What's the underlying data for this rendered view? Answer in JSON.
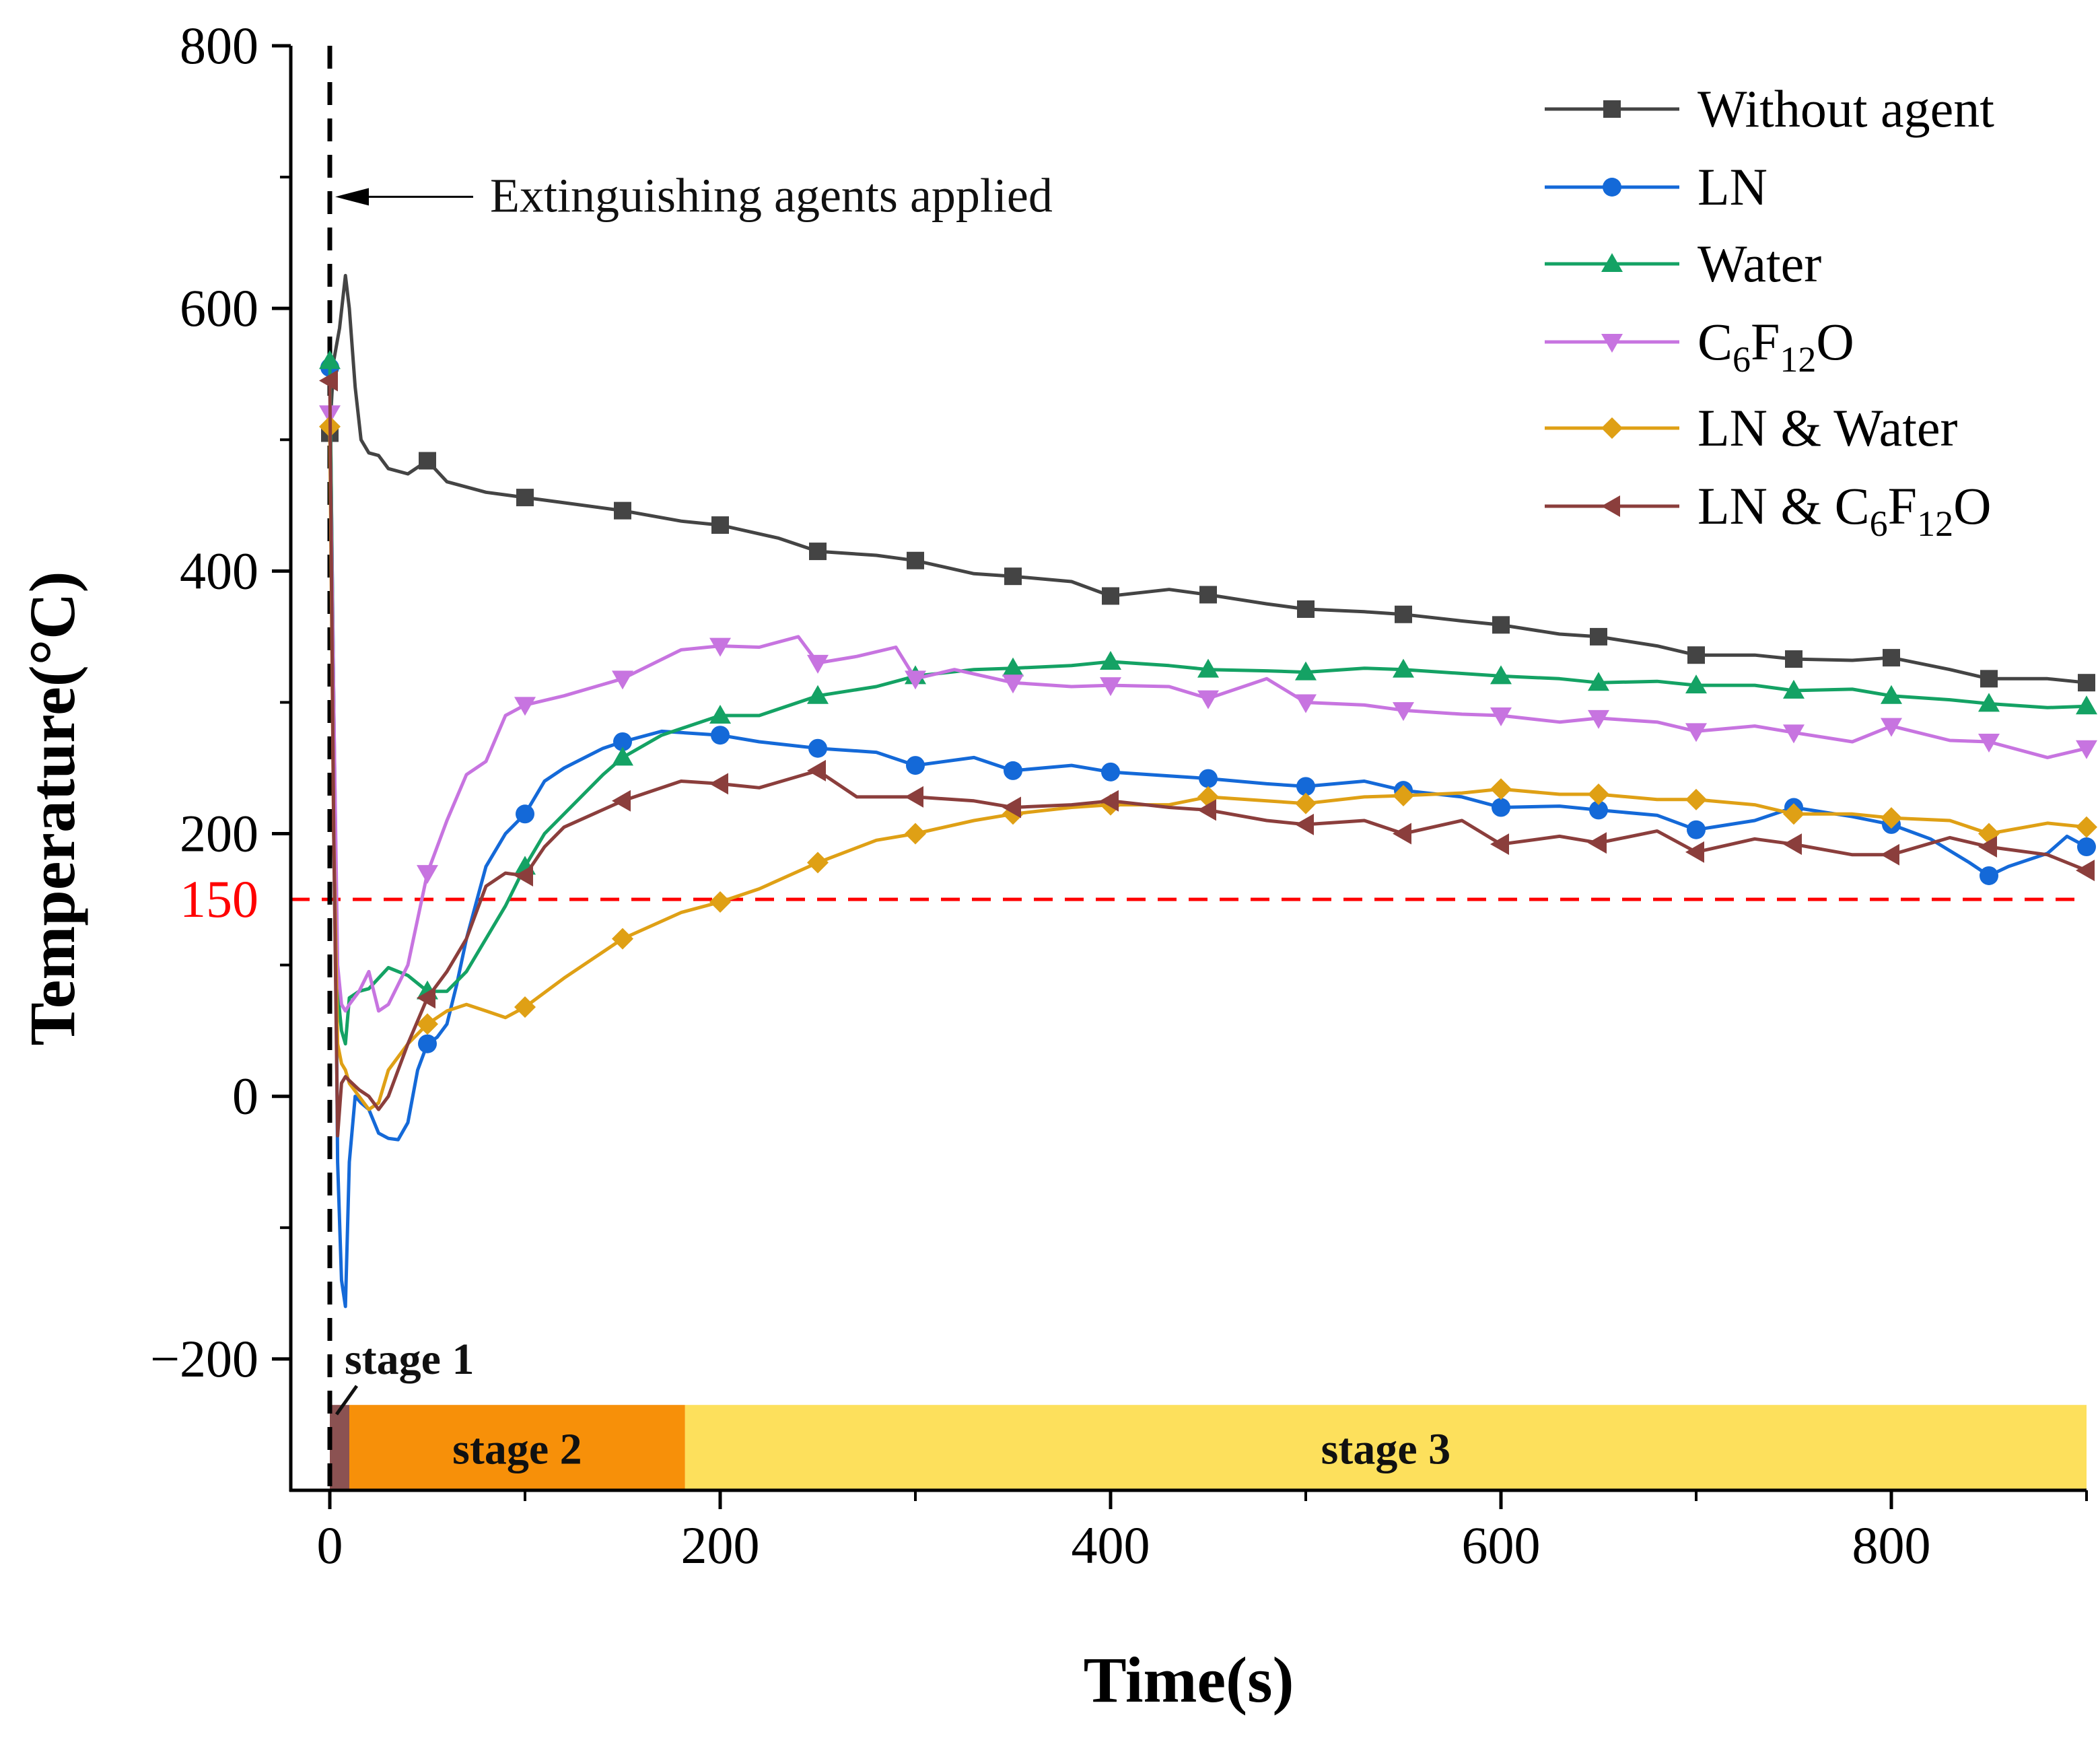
{
  "chart_data": {
    "type": "line",
    "xlabel": "Time(s)",
    "ylabel": "Temperature(°C)",
    "xlim": [
      -20,
      900
    ],
    "ylim": [
      -300,
      800
    ],
    "x_ticks": [
      0,
      200,
      400,
      600,
      800
    ],
    "y_ticks": [
      -200,
      0,
      200,
      400,
      600,
      800
    ],
    "x_tick_labels": [
      "0",
      "200",
      "400",
      "600",
      "800"
    ],
    "y_tick_labels": [
      "−200",
      "0",
      "200",
      "400",
      "600",
      "800"
    ],
    "grid": false,
    "legend_position": "top-right",
    "threshold": {
      "value": 150,
      "label": "150",
      "color": "#ff0000"
    },
    "agent_line": {
      "x": 0
    },
    "annotation": {
      "text": "Extinguishing agents applied",
      "x": 0,
      "y": 685
    },
    "stages": [
      {
        "label": "stage 1",
        "start": 0,
        "end": 10,
        "color": "#8b5252"
      },
      {
        "label": "stage 2",
        "start": 10,
        "end": 182,
        "color": "#f79009"
      },
      {
        "label": "stage 3",
        "start": 182,
        "end": 900,
        "color": "#fde05c"
      }
    ],
    "series": [
      {
        "name": "Without agent",
        "legend": [
          {
            "t": "Without agent",
            "sub": false
          }
        ],
        "color": "#444444",
        "marker": "square",
        "x": [
          0,
          2,
          5,
          8,
          10,
          13,
          16,
          20,
          25,
          30,
          40,
          50,
          60,
          80,
          100,
          120,
          150,
          180,
          200,
          230,
          250,
          280,
          300,
          330,
          350,
          380,
          400,
          430,
          450,
          480,
          500,
          530,
          550,
          580,
          600,
          630,
          650,
          680,
          700,
          730,
          750,
          780,
          800,
          830,
          850,
          880,
          900
        ],
        "y": [
          505,
          560,
          585,
          625,
          600,
          540,
          500,
          490,
          488,
          478,
          474,
          484,
          468,
          460,
          456,
          452,
          446,
          438,
          435,
          425,
          415,
          412,
          408,
          398,
          396,
          392,
          381,
          386,
          382,
          375,
          371,
          369,
          367,
          362,
          359,
          352,
          350,
          343,
          336,
          336,
          333,
          332,
          334,
          325,
          318,
          318,
          315
        ],
        "markers_x": [
          0,
          50,
          100,
          150,
          200,
          250,
          300,
          350,
          400,
          450,
          500,
          550,
          600,
          650,
          700,
          750,
          800,
          850,
          900
        ]
      },
      {
        "name": "LN",
        "legend": [
          {
            "t": "LN",
            "sub": false
          }
        ],
        "color": "#1469d8",
        "marker": "circle",
        "x": [
          0,
          2,
          4,
          6,
          8,
          10,
          13,
          16,
          20,
          25,
          30,
          35,
          40,
          45,
          50,
          55,
          60,
          65,
          70,
          80,
          90,
          100,
          110,
          120,
          140,
          150,
          170,
          200,
          220,
          250,
          280,
          300,
          330,
          350,
          380,
          400,
          430,
          450,
          480,
          500,
          530,
          550,
          580,
          600,
          630,
          650,
          680,
          700,
          730,
          750,
          780,
          800,
          820,
          840,
          850,
          860,
          880,
          890,
          900
        ],
        "y": [
          555,
          300,
          -50,
          -140,
          -160,
          -50,
          0,
          -5,
          -10,
          -28,
          -32,
          -33,
          -20,
          20,
          40,
          45,
          55,
          85,
          120,
          175,
          200,
          215,
          240,
          250,
          265,
          270,
          278,
          275,
          270,
          265,
          262,
          252,
          258,
          248,
          252,
          247,
          244,
          242,
          238,
          236,
          240,
          233,
          228,
          220,
          221,
          218,
          214,
          203,
          210,
          220,
          213,
          207,
          196,
          178,
          168,
          175,
          185,
          198,
          190
        ],
        "markers_x": [
          0,
          50,
          100,
          150,
          200,
          250,
          300,
          350,
          400,
          450,
          500,
          550,
          600,
          650,
          700,
          750,
          800,
          850,
          900
        ]
      },
      {
        "name": "Water",
        "legend": [
          {
            "t": "Water",
            "sub": false
          }
        ],
        "color": "#14a264",
        "marker": "triangle-up",
        "x": [
          0,
          2,
          4,
          6,
          8,
          10,
          15,
          20,
          30,
          40,
          50,
          60,
          70,
          80,
          90,
          100,
          110,
          120,
          140,
          150,
          170,
          200,
          220,
          250,
          280,
          300,
          330,
          350,
          380,
          400,
          430,
          450,
          480,
          500,
          530,
          550,
          580,
          600,
          630,
          650,
          680,
          700,
          730,
          750,
          780,
          800,
          830,
          850,
          880,
          900
        ],
        "y": [
          560,
          300,
          80,
          50,
          40,
          75,
          80,
          82,
          98,
          92,
          80,
          80,
          95,
          120,
          145,
          175,
          200,
          215,
          245,
          258,
          275,
          290,
          290,
          305,
          312,
          320,
          325,
          326,
          328,
          331,
          328,
          325,
          324,
          323,
          326,
          325,
          322,
          320,
          318,
          315,
          316,
          313,
          313,
          309,
          310,
          305,
          302,
          299,
          296,
          297
        ],
        "markers_x": [
          0,
          50,
          100,
          150,
          200,
          250,
          300,
          350,
          400,
          450,
          500,
          550,
          600,
          650,
          700,
          750,
          800,
          850,
          900
        ]
      },
      {
        "name": "C6F12O",
        "legend": [
          {
            "t": "C",
            "sub": false
          },
          {
            "t": "6",
            "sub": true
          },
          {
            "t": "F",
            "sub": false
          },
          {
            "t": "12",
            "sub": true
          },
          {
            "t": "O",
            "sub": false
          }
        ],
        "color": "#c774e0",
        "marker": "triangle-down",
        "x": [
          0,
          2,
          4,
          6,
          8,
          10,
          15,
          20,
          25,
          30,
          40,
          50,
          60,
          70,
          80,
          90,
          100,
          120,
          150,
          180,
          200,
          220,
          240,
          250,
          270,
          290,
          300,
          320,
          350,
          380,
          400,
          430,
          450,
          480,
          500,
          530,
          550,
          580,
          600,
          630,
          650,
          680,
          700,
          730,
          750,
          780,
          800,
          830,
          850,
          880,
          900
        ],
        "y": [
          520,
          300,
          100,
          70,
          65,
          70,
          80,
          95,
          65,
          70,
          100,
          170,
          210,
          245,
          255,
          290,
          298,
          305,
          318,
          340,
          343,
          342,
          350,
          330,
          335,
          342,
          318,
          325,
          315,
          312,
          313,
          312,
          303,
          318,
          300,
          298,
          294,
          291,
          290,
          285,
          288,
          285,
          278,
          282,
          277,
          270,
          282,
          271,
          270,
          258,
          265
        ],
        "markers_x": [
          0,
          50,
          100,
          150,
          200,
          250,
          300,
          350,
          400,
          450,
          500,
          550,
          600,
          650,
          700,
          750,
          800,
          850,
          900
        ]
      },
      {
        "name": "LN & Water",
        "legend": [
          {
            "t": "LN & Water",
            "sub": false
          }
        ],
        "color": "#dfa015",
        "marker": "diamond",
        "x": [
          0,
          2,
          4,
          6,
          8,
          10,
          15,
          20,
          25,
          30,
          40,
          50,
          60,
          70,
          80,
          90,
          100,
          120,
          150,
          180,
          200,
          220,
          250,
          280,
          300,
          330,
          350,
          380,
          400,
          430,
          450,
          480,
          500,
          530,
          550,
          580,
          600,
          630,
          650,
          680,
          700,
          730,
          750,
          780,
          800,
          830,
          850,
          880,
          900
        ],
        "y": [
          510,
          200,
          40,
          25,
          20,
          10,
          0,
          -10,
          -5,
          20,
          40,
          55,
          65,
          70,
          65,
          60,
          68,
          90,
          120,
          140,
          148,
          158,
          178,
          195,
          200,
          210,
          215,
          220,
          222,
          222,
          228,
          225,
          223,
          228,
          229,
          231,
          234,
          230,
          230,
          226,
          226,
          222,
          215,
          215,
          212,
          210,
          200,
          208,
          205
        ],
        "markers_x": [
          0,
          50,
          100,
          150,
          200,
          250,
          300,
          350,
          400,
          450,
          500,
          550,
          600,
          650,
          700,
          750,
          800,
          850,
          900
        ]
      },
      {
        "name": "LN & C6F12O",
        "legend": [
          {
            "t": "LN & C",
            "sub": false
          },
          {
            "t": "6",
            "sub": true
          },
          {
            "t": "F",
            "sub": false
          },
          {
            "t": "12",
            "sub": true
          },
          {
            "t": "O",
            "sub": false
          }
        ],
        "color": "#8b3e3c",
        "marker": "triangle-left",
        "x": [
          0,
          2,
          4,
          6,
          8,
          10,
          15,
          20,
          25,
          30,
          40,
          50,
          60,
          70,
          80,
          90,
          100,
          110,
          120,
          150,
          180,
          200,
          220,
          250,
          270,
          300,
          330,
          350,
          380,
          400,
          430,
          450,
          480,
          500,
          530,
          550,
          580,
          600,
          630,
          650,
          680,
          700,
          730,
          750,
          780,
          800,
          830,
          850,
          880,
          900
        ],
        "y": [
          545,
          200,
          -30,
          10,
          15,
          12,
          5,
          0,
          -10,
          0,
          40,
          75,
          95,
          120,
          160,
          170,
          168,
          190,
          205,
          225,
          240,
          238,
          235,
          248,
          228,
          228,
          225,
          220,
          222,
          225,
          220,
          218,
          210,
          207,
          210,
          200,
          210,
          192,
          198,
          193,
          202,
          186,
          196,
          192,
          184,
          184,
          197,
          190,
          184,
          172
        ],
        "markers_x": [
          0,
          50,
          100,
          150,
          200,
          250,
          300,
          350,
          400,
          450,
          500,
          550,
          600,
          650,
          700,
          750,
          800,
          850,
          900
        ]
      }
    ]
  }
}
